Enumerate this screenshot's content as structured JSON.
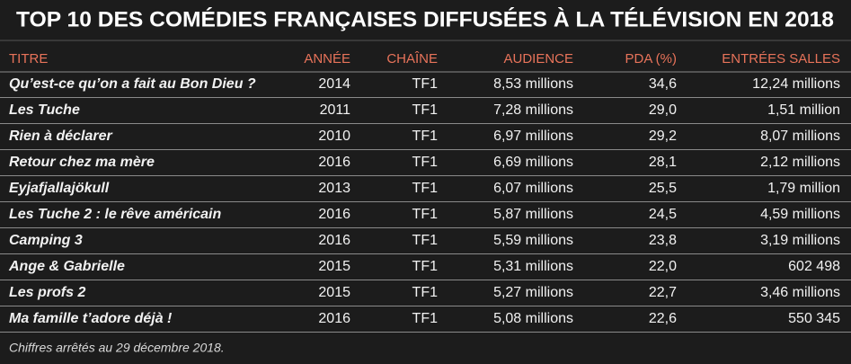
{
  "title": "TOP 10 DES COMÉDIES FRANÇAISES DIFFUSÉES À LA TÉLÉVISION EN 2018",
  "table": {
    "header": [
      "TITRE",
      "ANNÉE",
      "CHAÎNE",
      "AUDIENCE",
      "PDA (%)",
      "ENTRÉES SALLES"
    ],
    "rows": [
      [
        "Qu’est-ce qu’on a fait au Bon Dieu ?",
        "2014",
        "TF1",
        "8,53 millions",
        "34,6",
        "12,24 millions"
      ],
      [
        "Les Tuche",
        "2011",
        "TF1",
        "7,28 millions",
        "29,0",
        "1,51 million"
      ],
      [
        "Rien à déclarer",
        "2010",
        "TF1",
        "6,97 millions",
        "29,2",
        "8,07 millions"
      ],
      [
        "Retour chez ma mère",
        "2016",
        "TF1",
        "6,69 millions",
        "28,1",
        "2,12 millions"
      ],
      [
        "Eyjafjallajökull",
        "2013",
        "TF1",
        "6,07 millions",
        "25,5",
        "1,79 million"
      ],
      [
        "Les Tuche 2 : le rêve américain",
        "2016",
        "TF1",
        "5,87 millions",
        "24,5",
        "4,59 millions"
      ],
      [
        "Camping 3",
        "2016",
        "TF1",
        "5,59 millions",
        "23,8",
        "3,19 millions"
      ],
      [
        "Ange & Gabrielle",
        "2015",
        "TF1",
        "5,31 millions",
        "22,0",
        "602 498"
      ],
      [
        "Les profs 2",
        "2015",
        "TF1",
        "5,27 millions",
        "22,7",
        "3,46 millions"
      ],
      [
        "Ma famille t’adore déjà !",
        "2016",
        "TF1",
        "5,08 millions",
        "22,6",
        "550 345"
      ]
    ]
  },
  "footnote": "Chiffres arrêtés au 29 décembre 2018."
}
